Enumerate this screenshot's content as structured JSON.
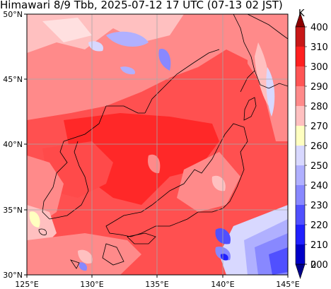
{
  "header": {
    "title": "Himawari 8/9 Tbb, 2025-07-12 17 UTC (07-13 02 JST)"
  },
  "map": {
    "lat_labels": [
      "50°N",
      "45°N",
      "40°N",
      "35°N",
      "30°N"
    ],
    "lon_labels": [
      "125°E",
      "130°E",
      "135°E",
      "140°E",
      "145°E"
    ]
  },
  "colorbar": {
    "unit": "K",
    "levels": [
      "400",
      "310",
      "300",
      "290",
      "280",
      "270",
      "260",
      "250",
      "240",
      "230",
      "220",
      "210",
      "200",
      "0"
    ],
    "colors": [
      "#8b0000",
      "#c81818",
      "#ff2020",
      "#ff5555",
      "#ff8a8a",
      "#ffc0c0",
      "#ffffc0",
      "#d8d8ff",
      "#b0b0ff",
      "#8888ff",
      "#5050ff",
      "#2020ff",
      "#0000c8",
      "#00008b"
    ]
  }
}
